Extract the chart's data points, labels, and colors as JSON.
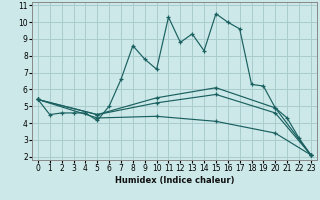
{
  "xlabel": "Humidex (Indice chaleur)",
  "xlim": [
    -0.5,
    23.5
  ],
  "ylim": [
    1.8,
    11.2
  ],
  "bg_color": "#cce8e8",
  "line_color": "#1a6060",
  "grid_color": "#aacccc",
  "lines": [
    {
      "x": [
        0,
        1,
        2,
        3,
        4,
        5,
        6,
        7,
        8,
        9,
        10,
        11,
        12,
        13,
        14,
        15,
        16,
        17,
        18,
        19,
        20,
        21,
        22,
        23
      ],
      "y": [
        5.4,
        4.5,
        4.6,
        4.6,
        4.6,
        4.15,
        5.0,
        6.6,
        8.6,
        7.8,
        7.2,
        10.3,
        8.8,
        9.3,
        8.3,
        10.5,
        10.0,
        9.6,
        6.3,
        6.2,
        4.9,
        4.3,
        3.1,
        2.1
      ]
    },
    {
      "x": [
        0,
        5,
        10,
        15,
        20,
        23
      ],
      "y": [
        5.4,
        4.5,
        5.5,
        6.1,
        4.9,
        2.1
      ]
    },
    {
      "x": [
        0,
        5,
        10,
        15,
        20,
        23
      ],
      "y": [
        5.4,
        4.5,
        5.2,
        5.7,
        4.6,
        2.1
      ]
    },
    {
      "x": [
        0,
        5,
        10,
        15,
        20,
        23
      ],
      "y": [
        5.4,
        4.3,
        4.4,
        4.1,
        3.4,
        2.1
      ]
    }
  ],
  "xticks": [
    0,
    1,
    2,
    3,
    4,
    5,
    6,
    7,
    8,
    9,
    10,
    11,
    12,
    13,
    14,
    15,
    16,
    17,
    18,
    19,
    20,
    21,
    22,
    23
  ],
  "yticks": [
    2,
    3,
    4,
    5,
    6,
    7,
    8,
    9,
    10,
    11
  ],
  "tick_fontsize": 5.5,
  "xlabel_fontsize": 6.0
}
